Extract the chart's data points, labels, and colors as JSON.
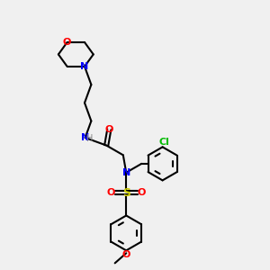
{
  "background_color": "#f0f0f0",
  "bond_color": "#000000",
  "N_color": "#0000ff",
  "O_color": "#ff0000",
  "S_color": "#cccc00",
  "Cl_color": "#00bb00",
  "H_color": "#888888",
  "line_width": 1.5,
  "figsize": [
    3.0,
    3.0
  ],
  "dpi": 100,
  "xlim": [
    0,
    10
  ],
  "ylim": [
    0,
    10
  ]
}
